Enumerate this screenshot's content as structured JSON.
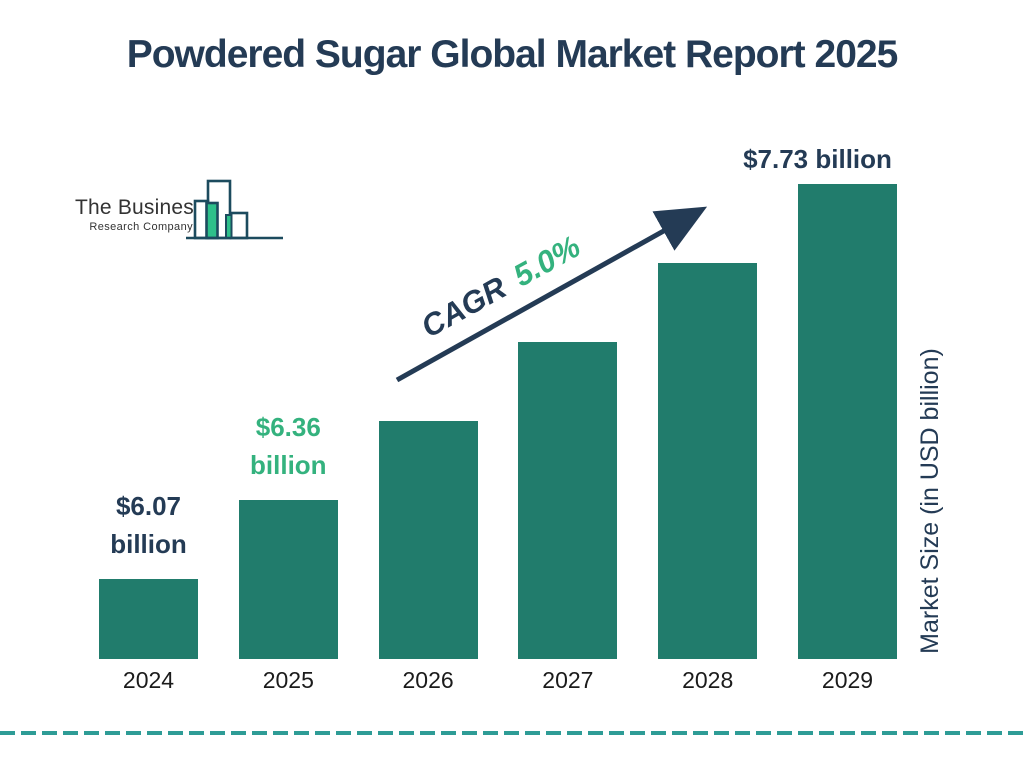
{
  "title": "Powdered Sugar Global Market Report 2025",
  "logo": {
    "line1": "The Business",
    "line2": "Research Company"
  },
  "cagr": {
    "prefix": "CAGR",
    "value": "5.0%"
  },
  "y_axis_label": "Market Size (in USD billion)",
  "colors": {
    "bar": "#217C6C",
    "navy": "#243B55",
    "green_text": "#34B27E",
    "dashed_line": "#2E9C96",
    "logo_outline": "#1C4B5E",
    "logo_green": "#2EC08A",
    "year_label": "#1b1b1b"
  },
  "chart_data": {
    "type": "bar",
    "title": "Powdered Sugar Global Market Report 2025",
    "categories": [
      "2024",
      "2025",
      "2026",
      "2027",
      "2028",
      "2029"
    ],
    "values": [
      6.07,
      6.36,
      6.68,
      7.01,
      7.36,
      7.73
    ],
    "unit": "USD billion",
    "xlabel": "",
    "ylabel": "Market Size (in USD billion)",
    "grid": false,
    "legend": false,
    "bar_color": "#217C6C",
    "cagr_annotation": "CAGR 5.0%",
    "annotations": [
      {
        "category": "2024",
        "label": "$6.07 billion",
        "lines": [
          "$6.07",
          "billion"
        ],
        "color": "#243B55"
      },
      {
        "category": "2025",
        "label": "$6.36 billion",
        "lines": [
          "$6.36",
          "billion"
        ],
        "color": "#34B27E"
      },
      {
        "category": "2029",
        "label": "$7.73 billion",
        "lines": [
          "$7.73 billion"
        ],
        "color": "#243B55"
      }
    ]
  }
}
